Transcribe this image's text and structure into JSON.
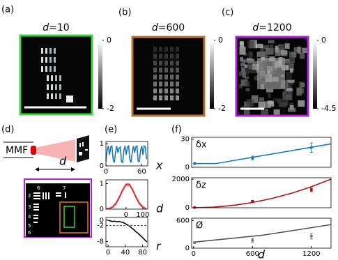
{
  "figure": {
    "panel_labels": [
      "(a)",
      "(b)",
      "(c)",
      "(d)",
      "(e)",
      "(f)"
    ]
  },
  "images": [
    {
      "title_var": "d",
      "title_value": "=10",
      "frame_color": "#3cd43c",
      "colorbar": {
        "lim": [
          -2,
          0
        ],
        "ticks": [
          0,
          -2
        ]
      }
    },
    {
      "title_var": "d",
      "title_value": "=600",
      "frame_color": "#b87333",
      "colorbar": {
        "lim": [
          -2,
          0
        ],
        "ticks": [
          0,
          -2
        ]
      }
    },
    {
      "title_var": "d",
      "title_value": "=1200",
      "frame_color": "#b01fd6",
      "colorbar": {
        "lim": [
          -4.5,
          0
        ],
        "ticks": [
          0,
          -4.5
        ]
      }
    }
  ],
  "diagram": {
    "fiber_label": "MMF",
    "distance_label": "d",
    "target_labels": [
      "6",
      "7",
      "2",
      "3",
      "4",
      "5",
      "6"
    ]
  },
  "chart_data": [
    {
      "type": "line",
      "xlabel": "x",
      "xlim": [
        0,
        70
      ],
      "xticks": [
        0,
        60
      ],
      "ylim": [
        0,
        1.1
      ],
      "yticks": [
        0,
        1
      ],
      "series": [
        {
          "color": "#1f77b4",
          "x": [
            0,
            2,
            4,
            6,
            8,
            10,
            12,
            14,
            16,
            18,
            20,
            22,
            24,
            26,
            28,
            30,
            32,
            34,
            36,
            38,
            40,
            42,
            44,
            46,
            48,
            50,
            52,
            54,
            56,
            58,
            60,
            62,
            64,
            66,
            68
          ],
          "values": [
            0.2,
            0.7,
            0.9,
            0.5,
            0.85,
            0.9,
            0.3,
            0.15,
            0.6,
            0.9,
            0.6,
            0.8,
            0.85,
            0.2,
            0.15,
            0.7,
            0.9,
            0.5,
            0.85,
            0.9,
            0.3,
            0.15,
            0.6,
            0.9,
            0.6,
            0.85,
            0.9,
            0.2,
            0.2,
            0.7,
            0.9,
            0.5,
            0.9,
            0.85,
            0.3
          ]
        }
      ]
    },
    {
      "type": "line",
      "xlabel": "d",
      "xlim": [
        -120,
        130
      ],
      "xticks": [
        0,
        100
      ],
      "ylim": [
        0,
        1.15
      ],
      "yticks": [
        0,
        1
      ],
      "series": [
        {
          "color": "#d62728",
          "x": [
            -120,
            -100,
            -80,
            -60,
            -40,
            -20,
            0,
            20,
            40,
            60,
            80,
            100,
            120
          ],
          "values": [
            0.01,
            0.02,
            0.08,
            0.22,
            0.46,
            0.75,
            0.97,
            0.97,
            0.75,
            0.46,
            0.22,
            0.08,
            0.01
          ],
          "lower": [
            0,
            0,
            0.03,
            0.15,
            0.38,
            0.67,
            0.9,
            0.9,
            0.67,
            0.38,
            0.15,
            0.03,
            0
          ],
          "upper": [
            0.03,
            0.06,
            0.14,
            0.3,
            0.55,
            0.83,
            1.03,
            1.03,
            0.83,
            0.55,
            0.3,
            0.14,
            0.04
          ]
        }
      ]
    },
    {
      "type": "line",
      "xlabel": "r",
      "xlim": [
        -5,
        92
      ],
      "xticks": [
        0,
        40,
        80
      ],
      "ylim": [
        -10,
        1
      ],
      "yticks": [
        0,
        -2,
        -8
      ],
      "series": [
        {
          "color": "#000000",
          "x": [
            0,
            5,
            10,
            15,
            20,
            25,
            30,
            35,
            40,
            45,
            50,
            55,
            60,
            65,
            70,
            75,
            80,
            85,
            90
          ],
          "values": [
            0,
            -0.3,
            -0.5,
            -0.4,
            -0.6,
            -0.5,
            -0.7,
            -0.9,
            -1.3,
            -1.8,
            -2.3,
            -3,
            -3.6,
            -4.4,
            -5,
            -5.8,
            -6.5,
            -7.4,
            -8.2
          ]
        },
        {
          "color": "#555555",
          "dashed": true,
          "x": [
            -5,
            92
          ],
          "values": [
            -2,
            -2
          ]
        }
      ]
    },
    {
      "type": "line",
      "ylabel": "δx",
      "xlim": [
        -20,
        1400
      ],
      "ylim": [
        0,
        32
      ],
      "yticks": [
        0,
        30
      ],
      "series": [
        {
          "color": "#1f77b4",
          "x": [
            0,
            230,
            1400
          ],
          "values": [
            4,
            4,
            25
          ]
        },
        {
          "color": "#1f77b4",
          "x": [
            10,
            600,
            1200
          ],
          "values": [
            4,
            10,
            21
          ],
          "errors": [
            1,
            2,
            5
          ]
        }
      ]
    },
    {
      "type": "line",
      "ylabel": "δz",
      "xlim": [
        -20,
        1400
      ],
      "ylim": [
        0,
        2100
      ],
      "yticks": [
        0,
        2000
      ],
      "series": [
        {
          "color": "#b01010",
          "x": [
            0,
            200,
            400,
            600,
            800,
            1000,
            1200,
            1400
          ],
          "values": [
            0,
            41,
            163,
            367,
            653,
            1020,
            1469,
            2000
          ]
        },
        {
          "color": "#b01010",
          "x": [
            10,
            600,
            1200
          ],
          "values": [
            20,
            450,
            1250
          ],
          "errors": [
            10,
            60,
            120
          ]
        }
      ]
    },
    {
      "type": "line",
      "ylabel": "Ø",
      "xlabel": "d",
      "xlim": [
        -20,
        1400
      ],
      "xticks": [
        0,
        600,
        1200
      ],
      "ylim": [
        0,
        650
      ],
      "yticks": [
        0,
        600
      ],
      "series": [
        {
          "color": "#555555",
          "x": [
            0,
            700,
            1400
          ],
          "values": [
            130,
            280,
            510
          ]
        },
        {
          "color": "#777777",
          "x": [
            10,
            600,
            1200
          ],
          "values": [
            120,
            170,
            260
          ],
          "errors": [
            20,
            40,
            60
          ]
        }
      ]
    }
  ]
}
